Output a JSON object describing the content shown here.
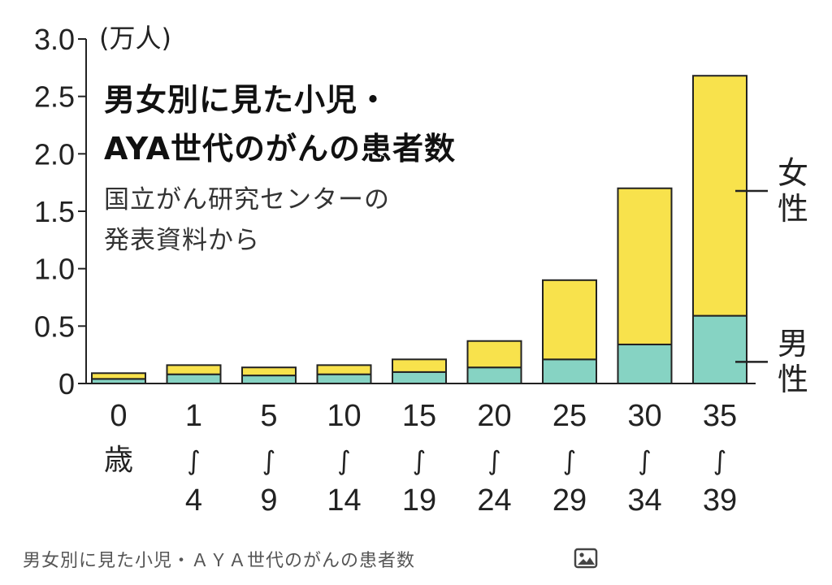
{
  "chart_data": {
    "type": "bar",
    "stacked": true,
    "title_lines": [
      "男女別に見た小児・",
      "AYA世代のがんの患者数"
    ],
    "source_lines": [
      "国立がん研究センターの",
      "発表資料から"
    ],
    "unit_label": "(万人)",
    "ylim": [
      0,
      3.0
    ],
    "y_ticks": [
      {
        "value": 0,
        "label": "0"
      },
      {
        "value": 0.5,
        "label": "0.5"
      },
      {
        "value": 1.0,
        "label": "1.0"
      },
      {
        "value": 1.5,
        "label": "1.5"
      },
      {
        "value": 2.0,
        "label": "2.0"
      },
      {
        "value": 2.5,
        "label": "2.5"
      },
      {
        "value": 3.0,
        "label": "3.0"
      }
    ],
    "categories": [
      {
        "top": "0",
        "mid": "歳",
        "bottom": ""
      },
      {
        "top": "1",
        "mid": "∫",
        "bottom": "4"
      },
      {
        "top": "5",
        "mid": "∫",
        "bottom": "9"
      },
      {
        "top": "10",
        "mid": "∫",
        "bottom": "14"
      },
      {
        "top": "15",
        "mid": "∫",
        "bottom": "19"
      },
      {
        "top": "20",
        "mid": "∫",
        "bottom": "24"
      },
      {
        "top": "25",
        "mid": "∫",
        "bottom": "29"
      },
      {
        "top": "30",
        "mid": "∫",
        "bottom": "34"
      },
      {
        "top": "35",
        "mid": "∫",
        "bottom": "39"
      }
    ],
    "series": [
      {
        "name": "男性",
        "color": "#86d3c3",
        "values": [
          0.04,
          0.08,
          0.07,
          0.08,
          0.1,
          0.14,
          0.21,
          0.34,
          0.59
        ]
      },
      {
        "name": "女性",
        "color": "#f8e24c",
        "values": [
          0.05,
          0.08,
          0.07,
          0.08,
          0.11,
          0.23,
          0.69,
          1.36,
          2.09
        ]
      }
    ],
    "series_labels": {
      "female": "女性",
      "male": "男性"
    }
  },
  "caption": {
    "text": "男女別に見た小児・ＡＹＡ世代のがんの患者数",
    "icon": "image-icon"
  }
}
